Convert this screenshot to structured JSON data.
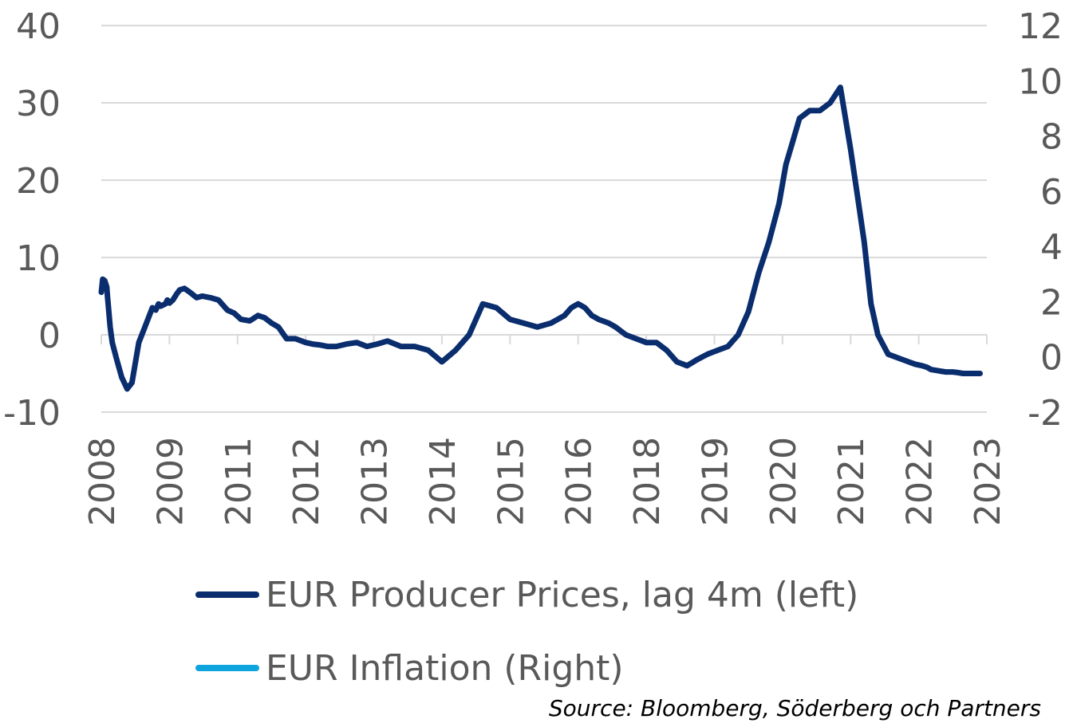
{
  "chart_data": {
    "type": "line",
    "title": "",
    "xlabel": "",
    "x_tick_labels": [
      "2008",
      "2009",
      "2011",
      "2012",
      "2013",
      "2014",
      "2015",
      "2016",
      "2018",
      "2019",
      "2020",
      "2021",
      "2022",
      "2023"
    ],
    "y_left": {
      "ylim": [
        -10,
        40
      ],
      "ticks": [
        -10,
        0,
        10,
        20,
        30,
        40
      ],
      "tick_labels": [
        "-10",
        "0",
        "10",
        "20",
        "30",
        "40"
      ]
    },
    "y_right": {
      "ylim": [
        -2,
        12
      ],
      "ticks": [
        -2,
        0,
        2,
        4,
        6,
        8,
        10,
        12
      ],
      "tick_labels": [
        "-2",
        "0",
        "2",
        "4",
        "6",
        "8",
        "10",
        "12"
      ]
    },
    "grid": "horizontal",
    "legend_position": "bottom",
    "series": [
      {
        "name": "EUR Producer Prices, lag 4m (left)",
        "axis": "left",
        "color": "#0a2d6e",
        "x": [
          0,
          0.02,
          0.05,
          0.08,
          0.09,
          0.13,
          0.16,
          0.22,
          0.3,
          0.38,
          0.45,
          0.55,
          0.64,
          0.75,
          0.8,
          0.84,
          0.87,
          0.94,
          0.97,
          1.0,
          1.05,
          1.1,
          1.15,
          1.22,
          1.3,
          1.4,
          1.48,
          1.6,
          1.72,
          1.85,
          1.95,
          2.05,
          2.18,
          2.3,
          2.4,
          2.5,
          2.6,
          2.72,
          2.85,
          3.0,
          3.1,
          3.2,
          3.32,
          3.45,
          3.6,
          3.75,
          3.9,
          4.05,
          4.2,
          4.4,
          4.6,
          4.8,
          5.0,
          5.2,
          5.4,
          5.6,
          5.8,
          6.0,
          6.2,
          6.4,
          6.6,
          6.8,
          6.9,
          7.0,
          7.1,
          7.2,
          7.3,
          7.45,
          7.55,
          7.7,
          7.85,
          8.0,
          8.15,
          8.3,
          8.45,
          8.6,
          8.75,
          8.9,
          9.05,
          9.2,
          9.35,
          9.5,
          9.65,
          9.8,
          9.95,
          10.05,
          10.15,
          10.25,
          10.4,
          10.55,
          10.7,
          10.85,
          11.0,
          11.1,
          11.2,
          11.3,
          11.4,
          11.55,
          11.7,
          11.85,
          11.95,
          12.05,
          12.12,
          12.18,
          12.25,
          12.32,
          12.4,
          12.5,
          12.58,
          12.65,
          12.72,
          12.8,
          12.9
        ],
        "y": [
          5.5,
          7.2,
          7,
          6.2,
          5,
          1,
          -1,
          -3,
          -5.5,
          -7,
          -6.2,
          -1,
          1,
          3.5,
          3.2,
          4,
          3.7,
          4,
          4.5,
          4.1,
          4.5,
          5.2,
          5.8,
          6,
          5.5,
          4.8,
          5,
          4.8,
          4.5,
          3.2,
          2.8,
          2,
          1.8,
          2.5,
          2.2,
          1.5,
          1,
          -0.5,
          -0.5,
          -1,
          -1.2,
          -1.3,
          -1.5,
          -1.5,
          -1.2,
          -1,
          -1.5,
          -1.2,
          -0.8,
          -1.5,
          -1.5,
          -2,
          -3.5,
          -2,
          0,
          4,
          3.5,
          2,
          1.5,
          1,
          1.5,
          2.5,
          3.5,
          4,
          3.5,
          2.5,
          2,
          1.5,
          1,
          0,
          -0.5,
          -1,
          -1,
          -2,
          -3.5,
          -4,
          -3.2,
          -2.5,
          -2,
          -1.5,
          0,
          3,
          8,
          12,
          17,
          22,
          25,
          28,
          29,
          29,
          30,
          32,
          24,
          18,
          12,
          4,
          0,
          -2.5,
          -3,
          -3.5,
          -3.8,
          -4,
          -4.2,
          -4.5,
          -4.6,
          -4.7,
          -4.8,
          -4.8,
          -4.9,
          -5,
          -5,
          -5,
          -5
        ],
        "y_note": ""
      },
      {
        "name": "EUR Inflation (Right)",
        "axis": "right",
        "color": "#0ea5df",
        "x": [],
        "y": []
      }
    ]
  },
  "source_text": "Source: Bloomberg, Söderberg och Partners",
  "colors": {
    "grid": "#d9d9d9",
    "axis_text": "#595959",
    "ppi": "#0a2d6e",
    "cpi": "#0ea5df"
  }
}
